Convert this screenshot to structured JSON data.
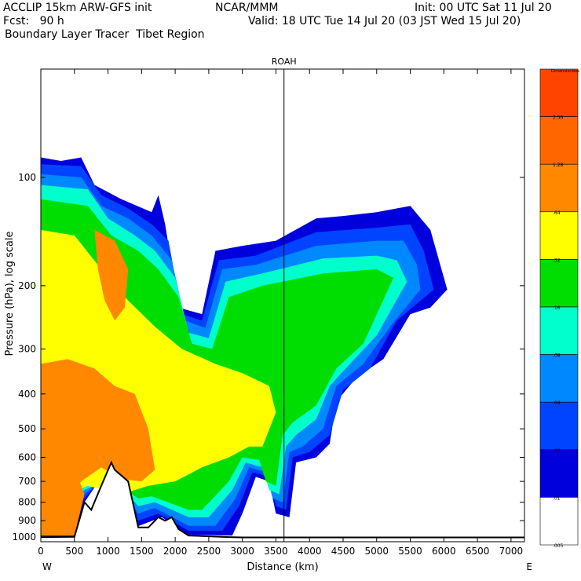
{
  "header": {
    "title_left": "ACCLIP 15km ARW-GFS init",
    "org": "NCAR/MMM",
    "init": "Init: 00 UTC Sat 11 Jul 20",
    "fcst": "Fcst:   90 h",
    "valid": "Valid: 18 UTC Tue 14 Jul 20 (03 JST Wed 15 Jul 20)",
    "product": "Boundary Layer Tracer  Tibet Region"
  },
  "chart_data": {
    "type": "heatmap",
    "title": "ROAH",
    "xlabel": "Distance (km)",
    "ylabel": "Pressure (hPa), log scale",
    "x_ticks": [
      0,
      500,
      1000,
      1500,
      2000,
      2500,
      3000,
      3500,
      4000,
      4500,
      5000,
      5500,
      6000,
      6500,
      7000
    ],
    "y_ticks": [
      100,
      200,
      300,
      400,
      500,
      600,
      700,
      800,
      900,
      1000
    ],
    "xlim": [
      0,
      7200
    ],
    "ylim": [
      1030,
      50
    ],
    "y_scale": "log",
    "direction_left": "W",
    "direction_right": "E",
    "marker_x": 3620,
    "colorbar": {
      "title": "Dimensionless",
      "levels": [
        "",
        "2.56",
        "1.28",
        ".64",
        ".32",
        ".16",
        ".08",
        ".04",
        ".02",
        ".01",
        ".005"
      ],
      "colors": [
        "#ff4400",
        "#ff6600",
        "#ff8800",
        "#ffff00",
        "#00dd00",
        "#00ffcc",
        "#0088ff",
        "#0044ff",
        "#0000dd",
        "#ffffff"
      ]
    },
    "terrain": [
      {
        "x": 0,
        "p": 1000
      },
      {
        "x": 500,
        "p": 998
      },
      {
        "x": 650,
        "p": 800
      },
      {
        "x": 750,
        "p": 840
      },
      {
        "x": 900,
        "p": 720
      },
      {
        "x": 1050,
        "p": 620
      },
      {
        "x": 1100,
        "p": 650
      },
      {
        "x": 1300,
        "p": 700
      },
      {
        "x": 1400,
        "p": 850
      },
      {
        "x": 1450,
        "p": 940
      },
      {
        "x": 1600,
        "p": 940
      },
      {
        "x": 1750,
        "p": 880
      },
      {
        "x": 1850,
        "p": 900
      },
      {
        "x": 1950,
        "p": 880
      },
      {
        "x": 2050,
        "p": 950
      },
      {
        "x": 2200,
        "p": 990
      },
      {
        "x": 2500,
        "p": 995
      },
      {
        "x": 2800,
        "p": 1000
      },
      {
        "x": 3000,
        "p": 1002
      },
      {
        "x": 4000,
        "p": 1002
      },
      {
        "x": 7200,
        "p": 1002
      }
    ],
    "tracer_outline": [
      {
        "x": 0,
        "p": 88
      },
      {
        "x": 300,
        "p": 90
      },
      {
        "x": 600,
        "p": 88
      },
      {
        "x": 800,
        "p": 105
      },
      {
        "x": 1200,
        "p": 115
      },
      {
        "x": 1650,
        "p": 125
      },
      {
        "x": 1750,
        "p": 112
      },
      {
        "x": 1850,
        "p": 135
      },
      {
        "x": 2050,
        "p": 230
      },
      {
        "x": 2400,
        "p": 240
      },
      {
        "x": 2600,
        "p": 160
      },
      {
        "x": 3000,
        "p": 155
      },
      {
        "x": 3500,
        "p": 150
      },
      {
        "x": 4100,
        "p": 130
      },
      {
        "x": 4500,
        "p": 128
      },
      {
        "x": 5000,
        "p": 125
      },
      {
        "x": 5500,
        "p": 120
      },
      {
        "x": 5800,
        "p": 140
      },
      {
        "x": 6050,
        "p": 205
      },
      {
        "x": 5800,
        "p": 230
      },
      {
        "x": 5500,
        "p": 240
      },
      {
        "x": 5100,
        "p": 320
      },
      {
        "x": 4700,
        "p": 360
      },
      {
        "x": 4400,
        "p": 420
      },
      {
        "x": 4300,
        "p": 550
      },
      {
        "x": 4100,
        "p": 600
      },
      {
        "x": 3800,
        "p": 620
      },
      {
        "x": 3700,
        "p": 880
      },
      {
        "x": 3500,
        "p": 860
      },
      {
        "x": 3400,
        "p": 700
      },
      {
        "x": 3200,
        "p": 680
      },
      {
        "x": 3000,
        "p": 860
      },
      {
        "x": 2850,
        "p": 990
      },
      {
        "x": 2200,
        "p": 985
      },
      {
        "x": 1800,
        "p": 880
      },
      {
        "x": 1400,
        "p": 940
      },
      {
        "x": 1050,
        "p": 620
      },
      {
        "x": 650,
        "p": 800
      },
      {
        "x": 500,
        "p": 995
      },
      {
        "x": 0,
        "p": 995
      }
    ],
    "regions": [
      {
        "level": ".01",
        "pts": [
          [
            0,
            88
          ],
          [
            300,
            90
          ],
          [
            600,
            88
          ],
          [
            800,
            105
          ],
          [
            1200,
            115
          ],
          [
            1650,
            125
          ],
          [
            1750,
            112
          ],
          [
            1850,
            135
          ],
          [
            2050,
            230
          ],
          [
            2400,
            240
          ],
          [
            2600,
            160
          ],
          [
            3000,
            155
          ],
          [
            3500,
            150
          ],
          [
            4100,
            130
          ],
          [
            4500,
            128
          ],
          [
            5000,
            125
          ],
          [
            5500,
            120
          ],
          [
            5800,
            140
          ],
          [
            6050,
            205
          ],
          [
            5800,
            230
          ],
          [
            5500,
            240
          ],
          [
            5100,
            320
          ],
          [
            4700,
            360
          ],
          [
            4400,
            420
          ],
          [
            4300,
            550
          ],
          [
            4100,
            600
          ],
          [
            3800,
            620
          ],
          [
            3700,
            880
          ],
          [
            3500,
            860
          ],
          [
            3400,
            700
          ],
          [
            3200,
            680
          ],
          [
            3000,
            860
          ],
          [
            2850,
            990
          ],
          [
            2200,
            985
          ],
          [
            1800,
            880
          ],
          [
            1400,
            940
          ],
          [
            1050,
            620
          ],
          [
            650,
            800
          ],
          [
            500,
            995
          ],
          [
            0,
            995
          ]
        ]
      },
      {
        "level": ".02",
        "pts": [
          [
            0,
            92
          ],
          [
            600,
            93
          ],
          [
            900,
            112
          ],
          [
            1300,
            122
          ],
          [
            1650,
            135
          ],
          [
            1900,
            150
          ],
          [
            2100,
            240
          ],
          [
            2400,
            250
          ],
          [
            2650,
            170
          ],
          [
            3200,
            165
          ],
          [
            4100,
            142
          ],
          [
            5000,
            138
          ],
          [
            5500,
            135
          ],
          [
            5700,
            160
          ],
          [
            5850,
            205
          ],
          [
            5300,
            250
          ],
          [
            4900,
            340
          ],
          [
            4500,
            390
          ],
          [
            4300,
            520
          ],
          [
            4000,
            580
          ],
          [
            3750,
            600
          ],
          [
            3650,
            840
          ],
          [
            3500,
            820
          ],
          [
            3400,
            680
          ],
          [
            3150,
            660
          ],
          [
            2950,
            820
          ],
          [
            2700,
            960
          ],
          [
            2200,
            960
          ],
          [
            1750,
            860
          ],
          [
            1450,
            900
          ],
          [
            1050,
            640
          ],
          [
            650,
            780
          ],
          [
            0,
            960
          ]
        ]
      },
      {
        "level": ".04",
        "pts": [
          [
            0,
            98
          ],
          [
            600,
            100
          ],
          [
            900,
            120
          ],
          [
            1300,
            130
          ],
          [
            1650,
            145
          ],
          [
            1950,
            170
          ],
          [
            2150,
            250
          ],
          [
            2450,
            262
          ],
          [
            2700,
            180
          ],
          [
            3200,
            175
          ],
          [
            4100,
            155
          ],
          [
            5000,
            150
          ],
          [
            5400,
            150
          ],
          [
            5600,
            175
          ],
          [
            5650,
            205
          ],
          [
            5200,
            260
          ],
          [
            4800,
            330
          ],
          [
            4400,
            380
          ],
          [
            4200,
            500
          ],
          [
            3900,
            560
          ],
          [
            3700,
            580
          ],
          [
            3600,
            800
          ],
          [
            3450,
            780
          ],
          [
            3350,
            660
          ],
          [
            3100,
            640
          ],
          [
            2900,
            780
          ],
          [
            2600,
            930
          ],
          [
            2200,
            930
          ],
          [
            1700,
            830
          ],
          [
            1450,
            860
          ],
          [
            1050,
            660
          ],
          [
            650,
            760
          ],
          [
            0,
            930
          ]
        ]
      },
      {
        "level": ".08",
        "pts": [
          [
            0,
            105
          ],
          [
            700,
            108
          ],
          [
            1000,
            130
          ],
          [
            1400,
            145
          ],
          [
            1700,
            160
          ],
          [
            2000,
            190
          ],
          [
            2200,
            270
          ],
          [
            2500,
            280
          ],
          [
            2750,
            195
          ],
          [
            3300,
            185
          ],
          [
            4200,
            168
          ],
          [
            5000,
            165
          ],
          [
            5300,
            170
          ],
          [
            5450,
            195
          ],
          [
            5000,
            275
          ],
          [
            4600,
            330
          ],
          [
            4300,
            380
          ],
          [
            4100,
            470
          ],
          [
            3800,
            520
          ],
          [
            3650,
            560
          ],
          [
            3550,
            760
          ],
          [
            3400,
            740
          ],
          [
            3300,
            640
          ],
          [
            3050,
            620
          ],
          [
            2850,
            740
          ],
          [
            2500,
            880
          ],
          [
            2200,
            880
          ],
          [
            1700,
            800
          ],
          [
            1450,
            820
          ],
          [
            1050,
            680
          ],
          [
            650,
            740
          ],
          [
            0,
            900
          ]
        ]
      },
      {
        "level": ".16",
        "pts": [
          [
            0,
            115
          ],
          [
            700,
            120
          ],
          [
            1050,
            145
          ],
          [
            1450,
            160
          ],
          [
            1750,
            180
          ],
          [
            2050,
            215
          ],
          [
            2250,
            290
          ],
          [
            2550,
            300
          ],
          [
            2800,
            215
          ],
          [
            3300,
            200
          ],
          [
            4200,
            185
          ],
          [
            5000,
            180
          ],
          [
            5250,
            190
          ],
          [
            4800,
            290
          ],
          [
            4400,
            340
          ],
          [
            4100,
            430
          ],
          [
            3750,
            480
          ],
          [
            3600,
            520
          ],
          [
            3500,
            720
          ],
          [
            3350,
            700
          ],
          [
            3250,
            610
          ],
          [
            3000,
            600
          ],
          [
            2800,
            700
          ],
          [
            2400,
            840
          ],
          [
            2200,
            840
          ],
          [
            1650,
            770
          ],
          [
            1450,
            780
          ],
          [
            1050,
            700
          ],
          [
            650,
            720
          ],
          [
            0,
            870
          ]
        ]
      },
      {
        "level": ".32",
        "pts": [
          [
            0,
            140
          ],
          [
            500,
            145
          ],
          [
            900,
            180
          ],
          [
            1300,
            220
          ],
          [
            1700,
            260
          ],
          [
            2100,
            300
          ],
          [
            2600,
            330
          ],
          [
            3000,
            350
          ],
          [
            3400,
            380
          ],
          [
            3500,
            450
          ],
          [
            3300,
            560
          ],
          [
            3100,
            560
          ],
          [
            2800,
            600
          ],
          [
            2400,
            640
          ],
          [
            2000,
            700
          ],
          [
            1600,
            720
          ],
          [
            1200,
            760
          ],
          [
            700,
            720
          ],
          [
            0,
            820
          ]
        ]
      },
      {
        "level": ".64",
        "pts": [
          [
            0,
            330
          ],
          [
            400,
            320
          ],
          [
            800,
            340
          ],
          [
            1100,
            380
          ],
          [
            1400,
            400
          ],
          [
            1600,
            500
          ],
          [
            1700,
            650
          ],
          [
            1500,
            700
          ],
          [
            1200,
            690
          ],
          [
            900,
            640
          ],
          [
            600,
            700
          ],
          [
            300,
            820
          ],
          [
            0,
            840
          ]
        ]
      },
      {
        "level": ".64",
        "pts": [
          [
            0,
            600
          ],
          [
            300,
            610
          ],
          [
            500,
            640
          ],
          [
            650,
            760
          ],
          [
            500,
            990
          ],
          [
            0,
            990
          ]
        ]
      },
      {
        "level": ".64",
        "pts": [
          [
            800,
            140
          ],
          [
            1100,
            150
          ],
          [
            1300,
            180
          ],
          [
            1250,
            230
          ],
          [
            1100,
            250
          ],
          [
            950,
            220
          ],
          [
            850,
            180
          ]
        ]
      }
    ]
  }
}
